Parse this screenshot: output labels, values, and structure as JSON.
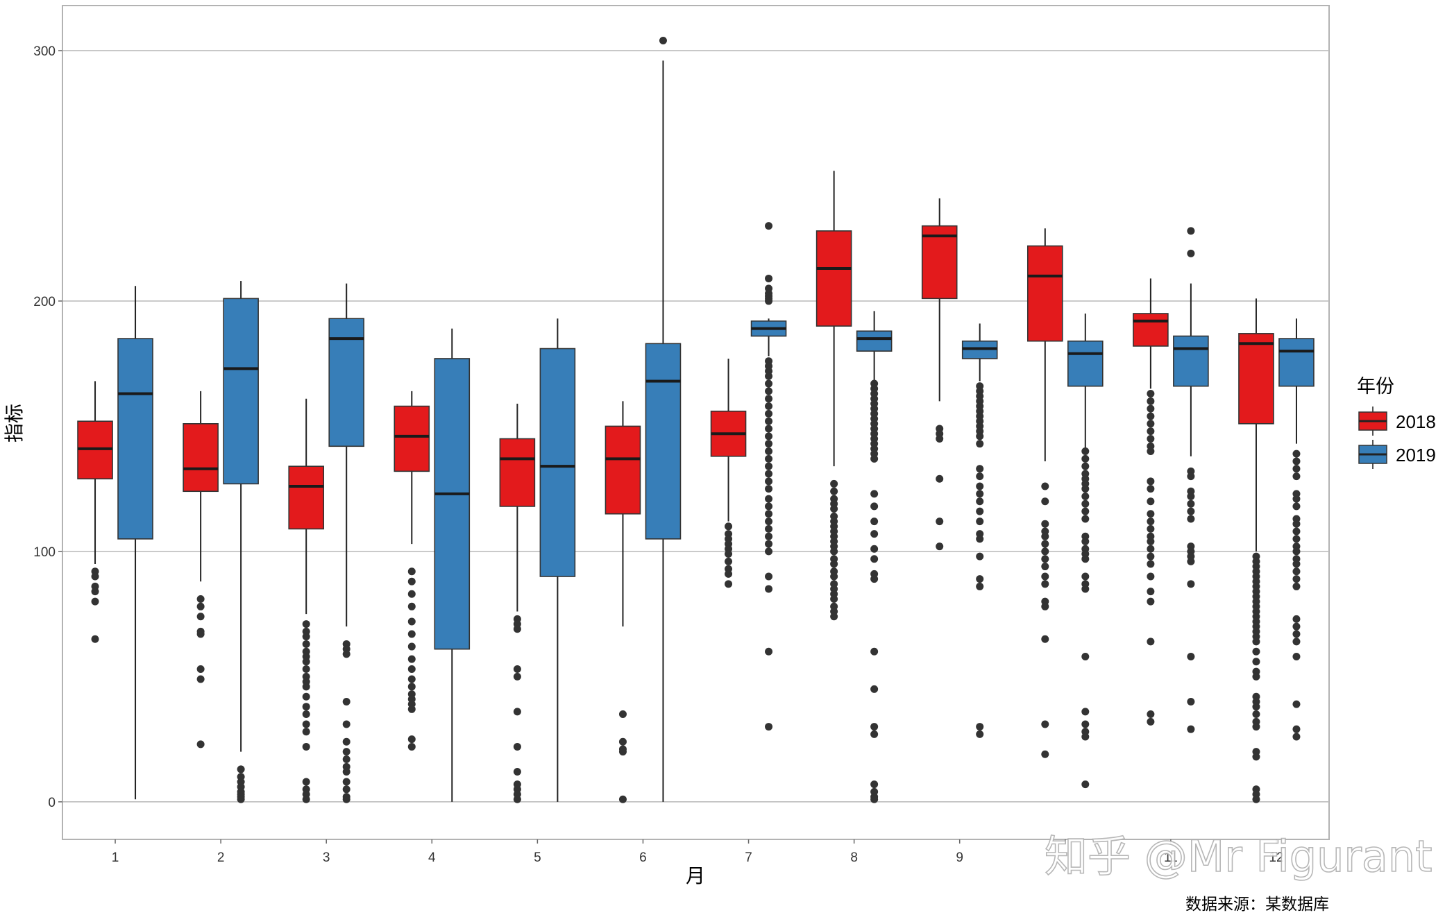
{
  "chart_data": {
    "type": "boxplot",
    "xlabel": "月",
    "ylabel": "指标",
    "caption": "数据来源：某数据库",
    "watermark": "知乎 @Mr Figurant",
    "legend": {
      "title": "年份",
      "position": "right"
    },
    "x": [
      "1",
      "2",
      "3",
      "4",
      "5",
      "6",
      "7",
      "8",
      "9",
      "10",
      "11",
      "12"
    ],
    "x_tick_labels": [
      "1",
      "2",
      "3",
      "4",
      "5",
      "6",
      "7",
      "8",
      "9",
      "",
      "11",
      "12"
    ],
    "ylim": [
      -15,
      318
    ],
    "yticks": [
      0,
      100,
      200,
      300
    ],
    "ytick_labels": [
      "0",
      "100",
      "200",
      "300"
    ],
    "grid": {
      "major_y": true,
      "color": "#bdbdbd"
    },
    "series": [
      {
        "name": "2018",
        "color": "#e31a1c",
        "boxes": [
          {
            "month": "1",
            "whisker_low": 95,
            "q1": 129,
            "median": 141,
            "q3": 152,
            "whisker_high": 168,
            "outliers": [
              92,
              90,
              86,
              84,
              80,
              65
            ]
          },
          {
            "month": "2",
            "whisker_low": 88,
            "q1": 124,
            "median": 133,
            "q3": 151,
            "whisker_high": 164,
            "outliers": [
              81,
              78,
              74,
              68,
              67,
              53,
              49,
              23
            ]
          },
          {
            "month": "3",
            "whisker_low": 75,
            "q1": 109,
            "median": 126,
            "q3": 134,
            "whisker_high": 161,
            "outliers": [
              71,
              68,
              66,
              63,
              60,
              58,
              56,
              53,
              50,
              48,
              46,
              42,
              38,
              35,
              31,
              28,
              22,
              8,
              5,
              3,
              1
            ]
          },
          {
            "month": "4",
            "whisker_low": 103,
            "q1": 132,
            "median": 146,
            "q3": 158,
            "whisker_high": 164,
            "outliers": [
              92,
              88,
              83,
              78,
              72,
              67,
              62,
              57,
              53,
              49,
              46,
              43,
              41,
              39,
              37,
              25,
              22
            ]
          },
          {
            "month": "5",
            "whisker_low": 76,
            "q1": 118,
            "median": 137,
            "q3": 145,
            "whisker_high": 159,
            "outliers": [
              73,
              71,
              69,
              53,
              50,
              36,
              22,
              12,
              7,
              5,
              3,
              1
            ]
          },
          {
            "month": "6",
            "whisker_low": 70,
            "q1": 115,
            "median": 137,
            "q3": 150,
            "whisker_high": 160,
            "outliers": [
              35,
              24,
              21,
              20,
              1
            ]
          },
          {
            "month": "7",
            "whisker_low": 112,
            "q1": 138,
            "median": 147,
            "q3": 156,
            "whisker_high": 177,
            "outliers": [
              110,
              107,
              105,
              103,
              101,
              99,
              96,
              93,
              91,
              87
            ]
          },
          {
            "month": "8",
            "whisker_low": 134,
            "q1": 190,
            "median": 213,
            "q3": 228,
            "whisker_high": 252,
            "outliers": [
              127,
              124,
              121,
              119,
              117,
              114,
              112,
              110,
              108,
              106,
              104,
              102,
              100,
              97,
              95,
              92,
              90,
              87,
              85,
              83,
              81,
              78,
              76,
              74
            ]
          },
          {
            "month": "9",
            "whisker_low": 160,
            "q1": 201,
            "median": 226,
            "q3": 230,
            "whisker_high": 241,
            "outliers": [
              149,
              147,
              145,
              129,
              112,
              102
            ]
          },
          {
            "month": "10",
            "whisker_low": 136,
            "q1": 184,
            "median": 210,
            "q3": 222,
            "whisker_high": 229,
            "outliers": [
              126,
              120,
              111,
              108,
              106,
              103,
              100,
              97,
              94,
              90,
              87,
              80,
              78,
              65,
              31,
              19
            ]
          },
          {
            "month": "11",
            "whisker_low": 165,
            "q1": 182,
            "median": 192,
            "q3": 195,
            "whisker_high": 209,
            "outliers": [
              163,
              160,
              157,
              154,
              151,
              148,
              145,
              142,
              140,
              128,
              125,
              120,
              115,
              112,
              109,
              106,
              104,
              101,
              98,
              95,
              90,
              84,
              80,
              64,
              35,
              32
            ]
          },
          {
            "month": "12",
            "whisker_low": 100,
            "q1": 151,
            "median": 183,
            "q3": 187,
            "whisker_high": 201,
            "outliers": [
              98,
              96,
              94,
              92,
              90,
              88,
              86,
              84,
              82,
              80,
              78,
              76,
              74,
              72,
              70,
              68,
              66,
              64,
              60,
              56,
              52,
              50,
              42,
              40,
              38,
              35,
              32,
              30,
              20,
              18,
              5,
              3,
              1
            ]
          }
        ]
      },
      {
        "name": "2019",
        "color": "#377eb8",
        "boxes": [
          {
            "month": "1",
            "whisker_low": 1,
            "q1": 105,
            "median": 163,
            "q3": 185,
            "whisker_high": 206,
            "outliers": []
          },
          {
            "month": "2",
            "whisker_low": 20,
            "q1": 127,
            "median": 173,
            "q3": 201,
            "whisker_high": 208,
            "outliers": [
              13,
              10,
              8,
              6,
              4,
              3,
              2,
              1
            ]
          },
          {
            "month": "3",
            "whisker_low": 70,
            "q1": 142,
            "median": 185,
            "q3": 193,
            "whisker_high": 207,
            "outliers": [
              63,
              61,
              59,
              40,
              31,
              24,
              20,
              17,
              14,
              12,
              8,
              5,
              2,
              1
            ]
          },
          {
            "month": "4",
            "whisker_low": 0,
            "q1": 61,
            "median": 123,
            "q3": 177,
            "whisker_high": 189,
            "outliers": []
          },
          {
            "month": "5",
            "whisker_low": 0,
            "q1": 90,
            "median": 134,
            "q3": 181,
            "whisker_high": 193,
            "outliers": []
          },
          {
            "month": "6",
            "whisker_low": 0,
            "q1": 105,
            "median": 168,
            "q3": 183,
            "whisker_high": 296,
            "outliers": [
              304
            ]
          },
          {
            "month": "7",
            "whisker_low": 178,
            "q1": 186,
            "median": 189,
            "q3": 192,
            "whisker_high": 193,
            "outliers": [
              230,
              209,
              205,
              203,
              202,
              201,
              200,
              176,
              174,
              172,
              170,
              167,
              164,
              161,
              158,
              155,
              152,
              149,
              146,
              143,
              140,
              137,
              134,
              131,
              128,
              125,
              121,
              118,
              115,
              112,
              109,
              106,
              103,
              100,
              90,
              85,
              60,
              30
            ]
          },
          {
            "month": "8",
            "whisker_low": 168,
            "q1": 180,
            "median": 185,
            "q3": 188,
            "whisker_high": 196,
            "outliers": [
              167,
              165,
              163,
              161,
              159,
              157,
              155,
              153,
              151,
              149,
              147,
              145,
              143,
              141,
              139,
              137,
              123,
              118,
              112,
              107,
              101,
              97,
              91,
              89,
              60,
              45,
              30,
              27,
              7,
              4,
              2,
              1
            ]
          },
          {
            "month": "9",
            "whisker_low": 168,
            "q1": 177,
            "median": 181,
            "q3": 184,
            "whisker_high": 191,
            "outliers": [
              166,
              164,
              162,
              160,
              158,
              156,
              154,
              152,
              150,
              148,
              146,
              143,
              133,
              130,
              126,
              123,
              120,
              116,
              112,
              107,
              105,
              98,
              89,
              86,
              30,
              27
            ]
          },
          {
            "month": "10",
            "whisker_low": 141,
            "q1": 166,
            "median": 179,
            "q3": 184,
            "whisker_high": 195,
            "outliers": [
              140,
              137,
              134,
              131,
              129,
              127,
              125,
              122,
              119,
              116,
              113,
              106,
              104,
              101,
              99,
              97,
              90,
              87,
              85,
              58,
              36,
              31,
              28,
              26,
              7
            ]
          },
          {
            "month": "11",
            "whisker_low": 138,
            "q1": 166,
            "median": 181,
            "q3": 186,
            "whisker_high": 207,
            "outliers": [
              228,
              219,
              132,
              130,
              124,
              122,
              119,
              116,
              113,
              102,
              100,
              98,
              96,
              87,
              58,
              40,
              29
            ]
          },
          {
            "month": "12",
            "whisker_low": 143,
            "q1": 166,
            "median": 180,
            "q3": 185,
            "whisker_high": 193,
            "outliers": [
              139,
              136,
              133,
              130,
              123,
              121,
              118,
              113,
              111,
              108,
              105,
              102,
              100,
              97,
              95,
              92,
              89,
              86,
              73,
              70,
              67,
              64,
              58,
              39,
              29,
              26
            ]
          }
        ]
      }
    ]
  }
}
